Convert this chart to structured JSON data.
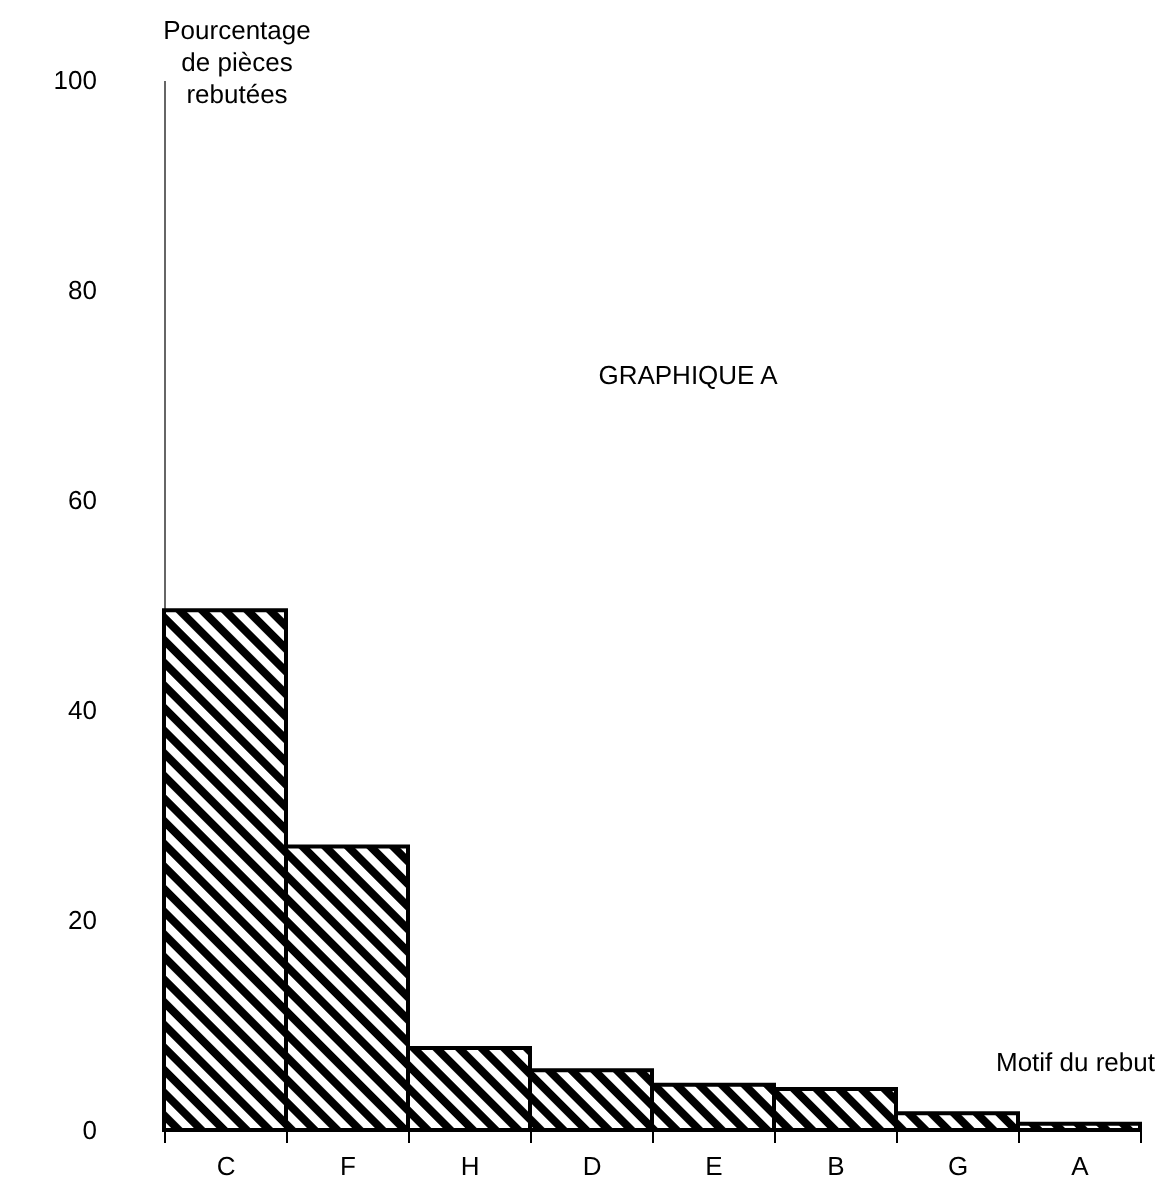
{
  "chart_data": {
    "type": "bar",
    "title": "GRAPHIQUE A",
    "ylabel": "Pourcentage\nde pièces\nrebutées",
    "xlabel": "Motif du rebut",
    "categories": [
      "C",
      "F",
      "H",
      "D",
      "E",
      "B",
      "G",
      "A"
    ],
    "values": [
      49.5,
      27,
      7.8,
      5.7,
      4.3,
      3.9,
      1.6,
      0.6
    ],
    "color": "#000000",
    "ylim": [
      0,
      100
    ],
    "yticks": [
      0,
      20,
      40,
      60,
      80,
      100
    ],
    "grid": false
  }
}
